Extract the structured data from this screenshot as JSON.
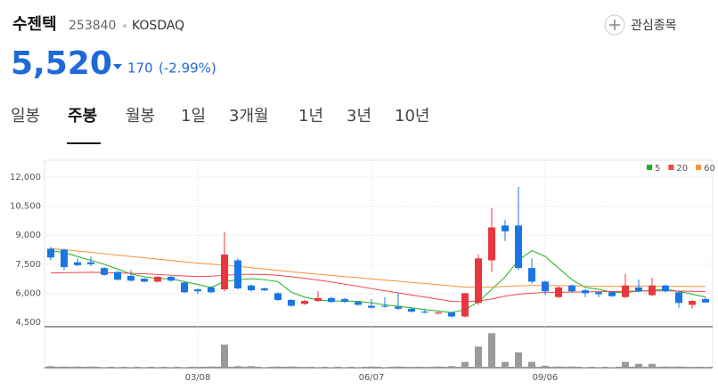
{
  "header": {
    "name": "수젠텍",
    "code": "253840",
    "market": "KOSDAQ",
    "watch": "관심종목",
    "price": "5,520",
    "change": "170",
    "change_pct": "(-2.99%)"
  },
  "tabs": [
    "일봉",
    "주봉",
    "월봉",
    "1일",
    "3개월",
    "1년",
    "3년",
    "10년"
  ],
  "chart_data": {
    "type": "candlestick",
    "categories": [
      null,
      null,
      null,
      null,
      null,
      null,
      null,
      null,
      null,
      null,
      null,
      "03/08",
      null,
      null,
      null,
      null,
      null,
      null,
      null,
      null,
      null,
      null,
      null,
      null,
      "06/07",
      null,
      null,
      null,
      null,
      null,
      null,
      null,
      null,
      null,
      null,
      null,
      null,
      "09/06",
      null,
      null,
      null,
      null,
      null,
      null,
      null,
      null,
      null,
      null,
      null,
      null
    ],
    "open": [
      8300,
      8250,
      7600,
      7600,
      7300,
      7100,
      6900,
      6750,
      6600,
      6850,
      6550,
      6200,
      6300,
      6200,
      7700,
      6400,
      6250,
      6000,
      5650,
      5450,
      5600,
      5750,
      5700,
      5550,
      5350,
      5350,
      5300,
      5200,
      5050,
      4950,
      5000,
      4800,
      5500,
      7700,
      9500,
      9500,
      7300,
      6600,
      5800,
      6400,
      6150,
      6050,
      6050,
      5800,
      6300,
      5900,
      6400,
      6050,
      5400,
      5700
    ],
    "high": [
      8400,
      8300,
      7800,
      7900,
      7350,
      7150,
      7200,
      6800,
      6900,
      6900,
      6600,
      6250,
      6350,
      9150,
      7800,
      6450,
      6300,
      6050,
      5700,
      5650,
      6100,
      5800,
      5750,
      5600,
      5700,
      5800,
      6000,
      5250,
      5200,
      5050,
      5050,
      6000,
      8000,
      10400,
      9800,
      11500,
      7800,
      6650,
      6350,
      6450,
      6200,
      6100,
      6100,
      7000,
      6700,
      6800,
      6450,
      6100,
      5650,
      5800
    ],
    "low": [
      7700,
      7200,
      7400,
      7400,
      6900,
      6650,
      6600,
      6550,
      6550,
      6600,
      6000,
      5950,
      6000,
      6100,
      6200,
      6100,
      6100,
      5600,
      5300,
      5400,
      5550,
      5500,
      5500,
      5350,
      5200,
      5250,
      5150,
      5000,
      4950,
      4900,
      4750,
      4750,
      5400,
      7100,
      8700,
      7200,
      6500,
      5900,
      5750,
      6050,
      5800,
      5800,
      5800,
      5750,
      6050,
      5850,
      6050,
      5250,
      5200,
      5500
    ],
    "close": [
      7850,
      7350,
      7450,
      7500,
      6950,
      6700,
      6650,
      6600,
      6850,
      6650,
      6050,
      6100,
      6050,
      8000,
      6250,
      6150,
      6150,
      5650,
      5350,
      5600,
      5750,
      5550,
      5550,
      5400,
      5250,
      5300,
      5200,
      5050,
      5000,
      5000,
      4800,
      6000,
      7800,
      9400,
      9200,
      7300,
      6600,
      6100,
      6300,
      6100,
      6000,
      5950,
      5850,
      6400,
      6100,
      6400,
      6100,
      5500,
      5600,
      5520
    ],
    "volume": [
      4,
      3,
      3,
      3,
      1,
      1,
      1,
      1,
      1,
      1,
      1,
      2,
      3,
      60,
      4,
      4,
      1,
      3,
      3,
      2,
      1,
      1,
      1,
      1,
      3,
      1,
      3,
      2,
      2,
      3,
      4,
      15,
      55,
      90,
      15,
      40,
      15,
      5,
      3,
      3,
      1,
      1,
      1,
      15,
      10,
      10,
      3,
      3,
      2,
      2
    ],
    "series": [
      {
        "name": "5",
        "color": "#1cb11c",
        "values": [
          8200,
          8100,
          7900,
          7700,
          7500,
          7250,
          7000,
          6850,
          6750,
          6750,
          6600,
          6450,
          6300,
          6600,
          6700,
          6750,
          6700,
          6600,
          6050,
          5800,
          5650,
          5600,
          5600,
          5580,
          5500,
          5400,
          5330,
          5250,
          5150,
          5080,
          5000,
          5150,
          5550,
          6200,
          6850,
          7700,
          8200,
          7900,
          7300,
          6700,
          6300,
          6200,
          6050,
          6050,
          6100,
          6150,
          6200,
          6100,
          5950,
          5800
        ]
      },
      {
        "name": "20",
        "color": "#f0464b",
        "values": [
          7050,
          7060,
          7070,
          7080,
          7070,
          7050,
          7030,
          7000,
          6970,
          6930,
          6890,
          6860,
          6880,
          6930,
          6960,
          6980,
          6970,
          6920,
          6850,
          6770,
          6680,
          6580,
          6470,
          6360,
          6240,
          6130,
          6020,
          5910,
          5800,
          5690,
          5580,
          5560,
          5600,
          5700,
          5850,
          5950,
          6000,
          6050,
          6050,
          6060,
          6070,
          6080,
          6090,
          6100,
          6110,
          6120,
          6120,
          6110,
          6100,
          6090
        ]
      },
      {
        "name": "60",
        "color": "#f7913c",
        "values": [
          8300,
          8250,
          8180,
          8110,
          8040,
          7970,
          7900,
          7830,
          7760,
          7690,
          7620,
          7560,
          7500,
          7450,
          7390,
          7320,
          7250,
          7180,
          7110,
          7040,
          6980,
          6920,
          6860,
          6800,
          6740,
          6680,
          6620,
          6560,
          6500,
          6440,
          6380,
          6320,
          6300,
          6320,
          6350,
          6380,
          6400,
          6400,
          6390,
          6380,
          6370,
          6360,
          6360,
          6360,
          6370,
          6370,
          6360,
          6360,
          6350,
          6350
        ]
      }
    ],
    "up_color": "#e8373e",
    "down_color": "#1a76e4",
    "volume_color": "#9a9a9a",
    "ylim": [
      4500,
      12000
    ],
    "yticks": [
      {
        "value": 4500,
        "label": "4,500"
      },
      {
        "value": 6000,
        "label": "6,000"
      },
      {
        "value": 7500,
        "label": "7,500"
      },
      {
        "value": 9000,
        "label": "9,000"
      },
      {
        "value": 10500,
        "label": "10,500"
      },
      {
        "value": 12000,
        "label": "12,000"
      }
    ],
    "volume_lim": [
      0,
      100
    ],
    "grid": true
  }
}
